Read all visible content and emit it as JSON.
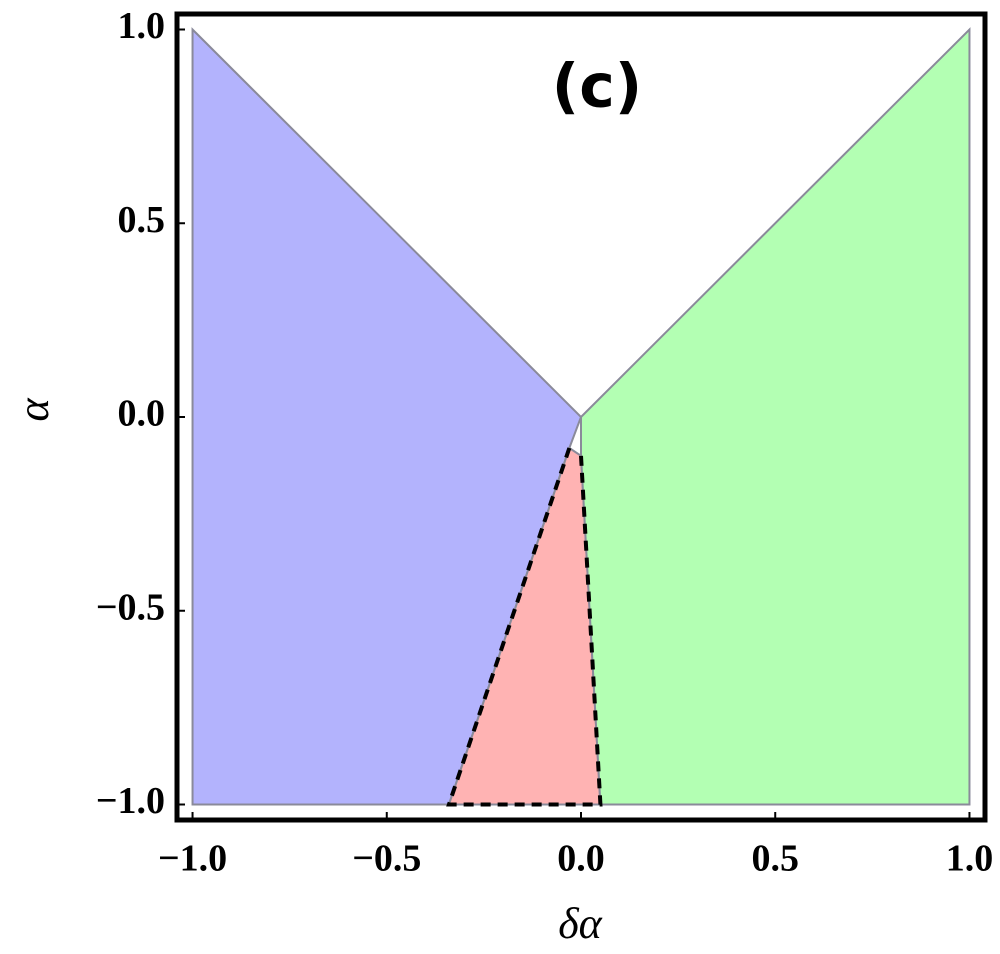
{
  "chart_data": {
    "type": "region",
    "xlabel": "δα",
    "ylabel": "α",
    "annotation": "(c)",
    "xlim": [
      -1.04,
      1.04
    ],
    "ylim": [
      -1.04,
      1.04
    ],
    "xticks": [
      {
        "value": -1,
        "label": "−1.0"
      },
      {
        "value": -0.5,
        "label": "−0.5"
      },
      {
        "value": 0,
        "label": "0.0"
      },
      {
        "value": 0.5,
        "label": "0.5"
      },
      {
        "value": 1,
        "label": "1.0"
      }
    ],
    "yticks": [
      {
        "value": -1,
        "label": "−1.0"
      },
      {
        "value": -0.5,
        "label": "−0.5"
      },
      {
        "value": 0,
        "label": "0.0"
      },
      {
        "value": 0.5,
        "label": "0.5"
      },
      {
        "value": 1,
        "label": "1.0"
      }
    ],
    "edge_color": "#8a8a9a",
    "series": [
      {
        "color": "#b3b3fd",
        "x": [
          -1,
          0,
          -0.03,
          -0.34,
          -1
        ],
        "y": [
          1,
          0,
          -0.08,
          -1,
          -1
        ]
      },
      {
        "color": "#ffb3b3",
        "x": [
          -0.03,
          0,
          0.05,
          -0.34
        ],
        "y": [
          -0.08,
          -0.1,
          -1,
          -1
        ]
      },
      {
        "color": "#b3ffb3",
        "x": [
          0,
          1,
          1,
          0.05,
          0
        ],
        "y": [
          0,
          1,
          -1,
          -1,
          -0.1
        ]
      }
    ],
    "boundary": {
      "color": "#000000",
      "dashed": true,
      "x": [
        -0.03,
        -0.34,
        0.05,
        0
      ],
      "y": [
        -0.08,
        -1,
        -1,
        -0.1
      ]
    }
  }
}
